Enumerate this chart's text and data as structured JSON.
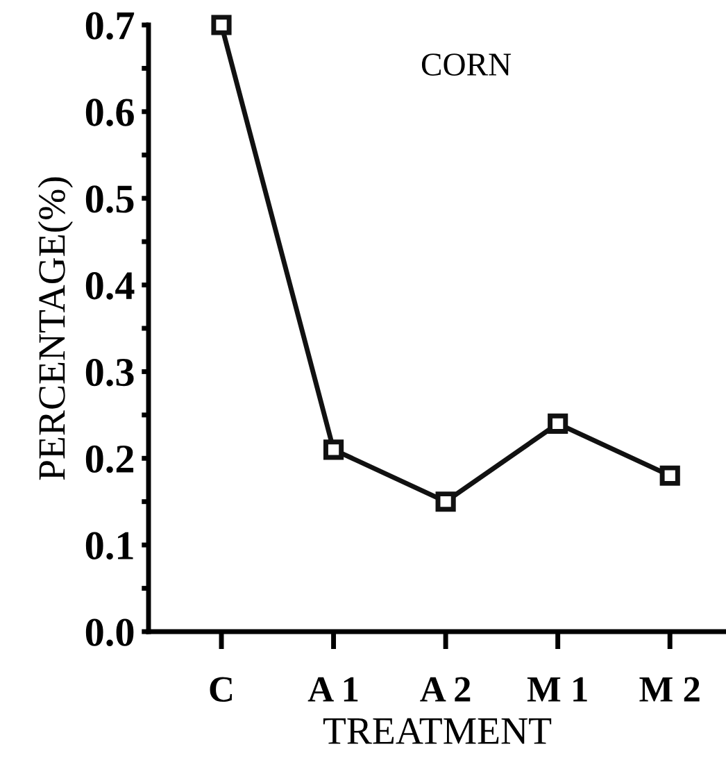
{
  "chart_data": {
    "type": "line",
    "title": "CORN",
    "xlabel": "TREATMENT",
    "ylabel": "PERCENTAGE(%)",
    "categories": [
      "C",
      "A 1",
      "A 2",
      "M 1",
      "M 2"
    ],
    "series": [
      {
        "color": "#111111",
        "values": [
          0.7,
          0.21,
          0.15,
          0.24,
          0.18
        ]
      }
    ],
    "marker": "square",
    "line_style": "solid",
    "grid": false,
    "legend": false,
    "ylim": [
      0,
      0.7
    ],
    "yticks": [
      {
        "value": 0,
        "label": "0.0"
      },
      {
        "value": 0.05,
        "label": null
      },
      0.1,
      {
        "value": 0.15,
        "label": null
      },
      0.2,
      {
        "value": 0.25,
        "label": null
      },
      0.3,
      {
        "value": 0.35,
        "label": null
      },
      0.4,
      {
        "value": 0.45,
        "label": null
      },
      0.5,
      {
        "value": 0.55,
        "label": null
      },
      0.6,
      {
        "value": 0.65,
        "label": null
      },
      0.7
    ]
  }
}
